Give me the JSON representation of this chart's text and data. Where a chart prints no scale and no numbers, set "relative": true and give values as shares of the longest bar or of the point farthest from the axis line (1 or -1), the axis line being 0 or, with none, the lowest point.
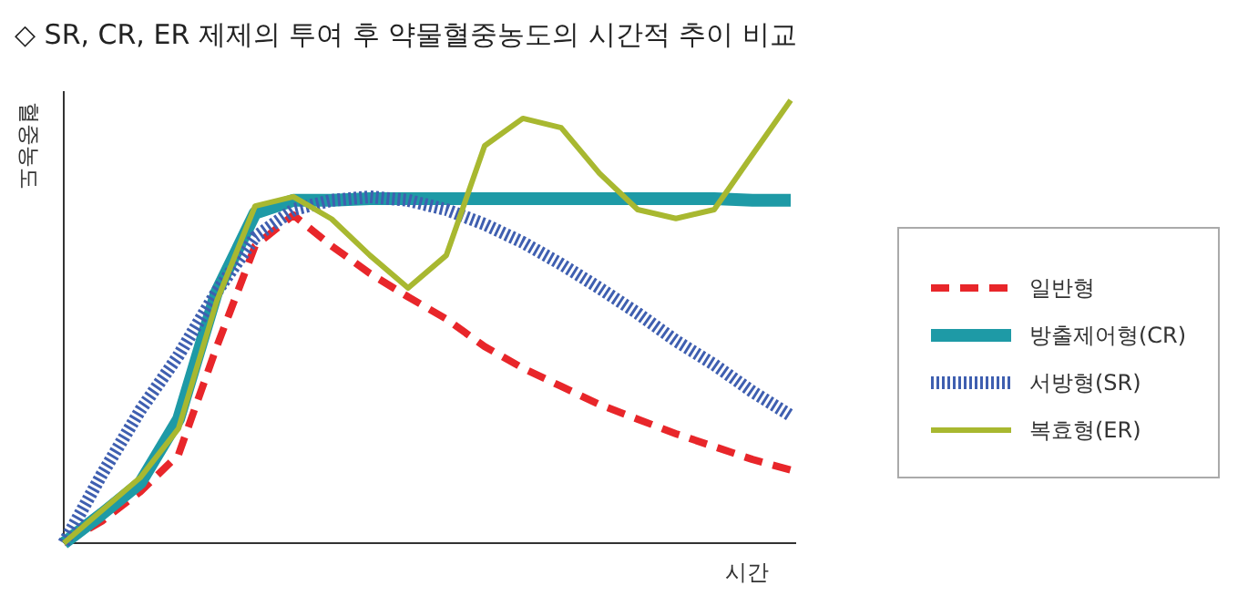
{
  "chart_data": {
    "type": "line",
    "relative": true,
    "title": "◇ SR, CR, ER 제제의 투여 후 약물혈중농도의 시간적 추이 비교",
    "xlabel": "시간",
    "ylabel": "혈중농도",
    "legend": "right",
    "categories": [
      null,
      null,
      null,
      null,
      null,
      null,
      null,
      null,
      null,
      null,
      null,
      null,
      null,
      null,
      null,
      null,
      null,
      null,
      null,
      null
    ],
    "series": [
      {
        "name": "일반형",
        "color": "#e8262a",
        "line_style": "dashed",
        "values": [
          0,
          0.05,
          0.116,
          0.2,
          0.444,
          0.671,
          0.741,
          0.671,
          0.609,
          0.556,
          0.506,
          0.444,
          0.395,
          0.354,
          0.313,
          0.28,
          0.247,
          0.218,
          0.189,
          0.165
        ]
      },
      {
        "name": "방출제어형(CR)",
        "color": "#1e9aa6",
        "line_style": "solid",
        "values": [
          0,
          0.066,
          0.136,
          0.28,
          0.568,
          0.745,
          0.774,
          0.774,
          0.778,
          0.778,
          0.778,
          0.778,
          0.778,
          0.778,
          0.778,
          0.778,
          0.778,
          0.778,
          0.774,
          0.774
        ]
      },
      {
        "name": "서방형(SR)",
        "color": "#3f5fb0",
        "line_style": "dotted",
        "values": [
          0,
          0.156,
          0.3,
          0.424,
          0.568,
          0.691,
          0.753,
          0.774,
          0.782,
          0.774,
          0.753,
          0.72,
          0.679,
          0.63,
          0.576,
          0.519,
          0.457,
          0.403,
          0.342,
          0.288
        ]
      },
      {
        "name": "복효형(ER)",
        "color": "#a8b830",
        "line_style": "solid",
        "values": [
          0,
          0.074,
          0.148,
          0.259,
          0.547,
          0.761,
          0.782,
          0.732,
          0.65,
          0.576,
          0.65,
          0.897,
          0.959,
          0.938,
          0.835,
          0.753,
          0.733,
          0.753,
          0.877,
          1
        ]
      }
    ]
  }
}
